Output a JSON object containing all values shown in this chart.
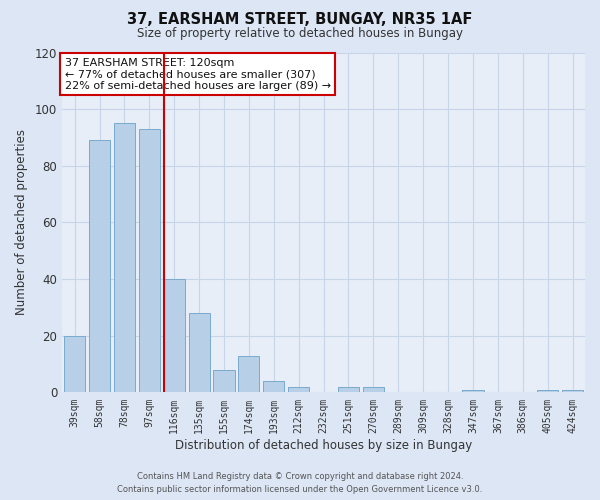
{
  "title": "37, EARSHAM STREET, BUNGAY, NR35 1AF",
  "subtitle": "Size of property relative to detached houses in Bungay",
  "xlabel": "Distribution of detached houses by size in Bungay",
  "ylabel": "Number of detached properties",
  "categories": [
    "39sqm",
    "58sqm",
    "78sqm",
    "97sqm",
    "116sqm",
    "135sqm",
    "155sqm",
    "174sqm",
    "193sqm",
    "212sqm",
    "232sqm",
    "251sqm",
    "270sqm",
    "289sqm",
    "309sqm",
    "328sqm",
    "347sqm",
    "367sqm",
    "386sqm",
    "405sqm",
    "424sqm"
  ],
  "values": [
    20,
    89,
    95,
    93,
    40,
    28,
    8,
    13,
    4,
    2,
    0,
    2,
    2,
    0,
    0,
    0,
    1,
    0,
    0,
    1,
    1
  ],
  "bar_color": "#b8cfe8",
  "bar_edge_color": "#7aaad0",
  "highlight_line_color": "#cc0000",
  "highlight_line_index": 4,
  "annotation_title": "37 EARSHAM STREET: 120sqm",
  "annotation_line1": "← 77% of detached houses are smaller (307)",
  "annotation_line2": "22% of semi-detached houses are larger (89) →",
  "annotation_box_color": "#ffffff",
  "annotation_box_edge": "#cc0000",
  "ylim": [
    0,
    120
  ],
  "yticks": [
    0,
    20,
    40,
    60,
    80,
    100,
    120
  ],
  "footer_line1": "Contains HM Land Registry data © Crown copyright and database right 2024.",
  "footer_line2": "Contains public sector information licensed under the Open Government Licence v3.0.",
  "bg_color": "#e8eef8",
  "fig_bg_color": "#dce6f5",
  "grid_color": "#c8d4e8"
}
